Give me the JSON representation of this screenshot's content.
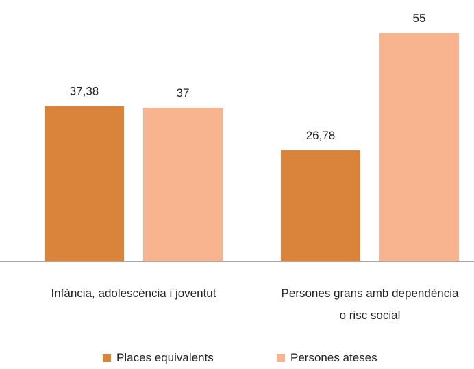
{
  "chart_data": {
    "type": "bar",
    "categories": [
      "Infància, adolescència i joventut",
      "Persones grans amb dependència o risc social"
    ],
    "series": [
      {
        "name": "Places equivalents",
        "color": "#d9843a",
        "values": [
          37.38,
          26.78
        ],
        "value_labels": [
          "37,38",
          "26,78"
        ]
      },
      {
        "name": "Persones ateses",
        "color": "#f8b48f",
        "values": [
          37,
          55
        ],
        "value_labels": [
          "37",
          "55"
        ]
      }
    ],
    "legend": "bottom"
  }
}
